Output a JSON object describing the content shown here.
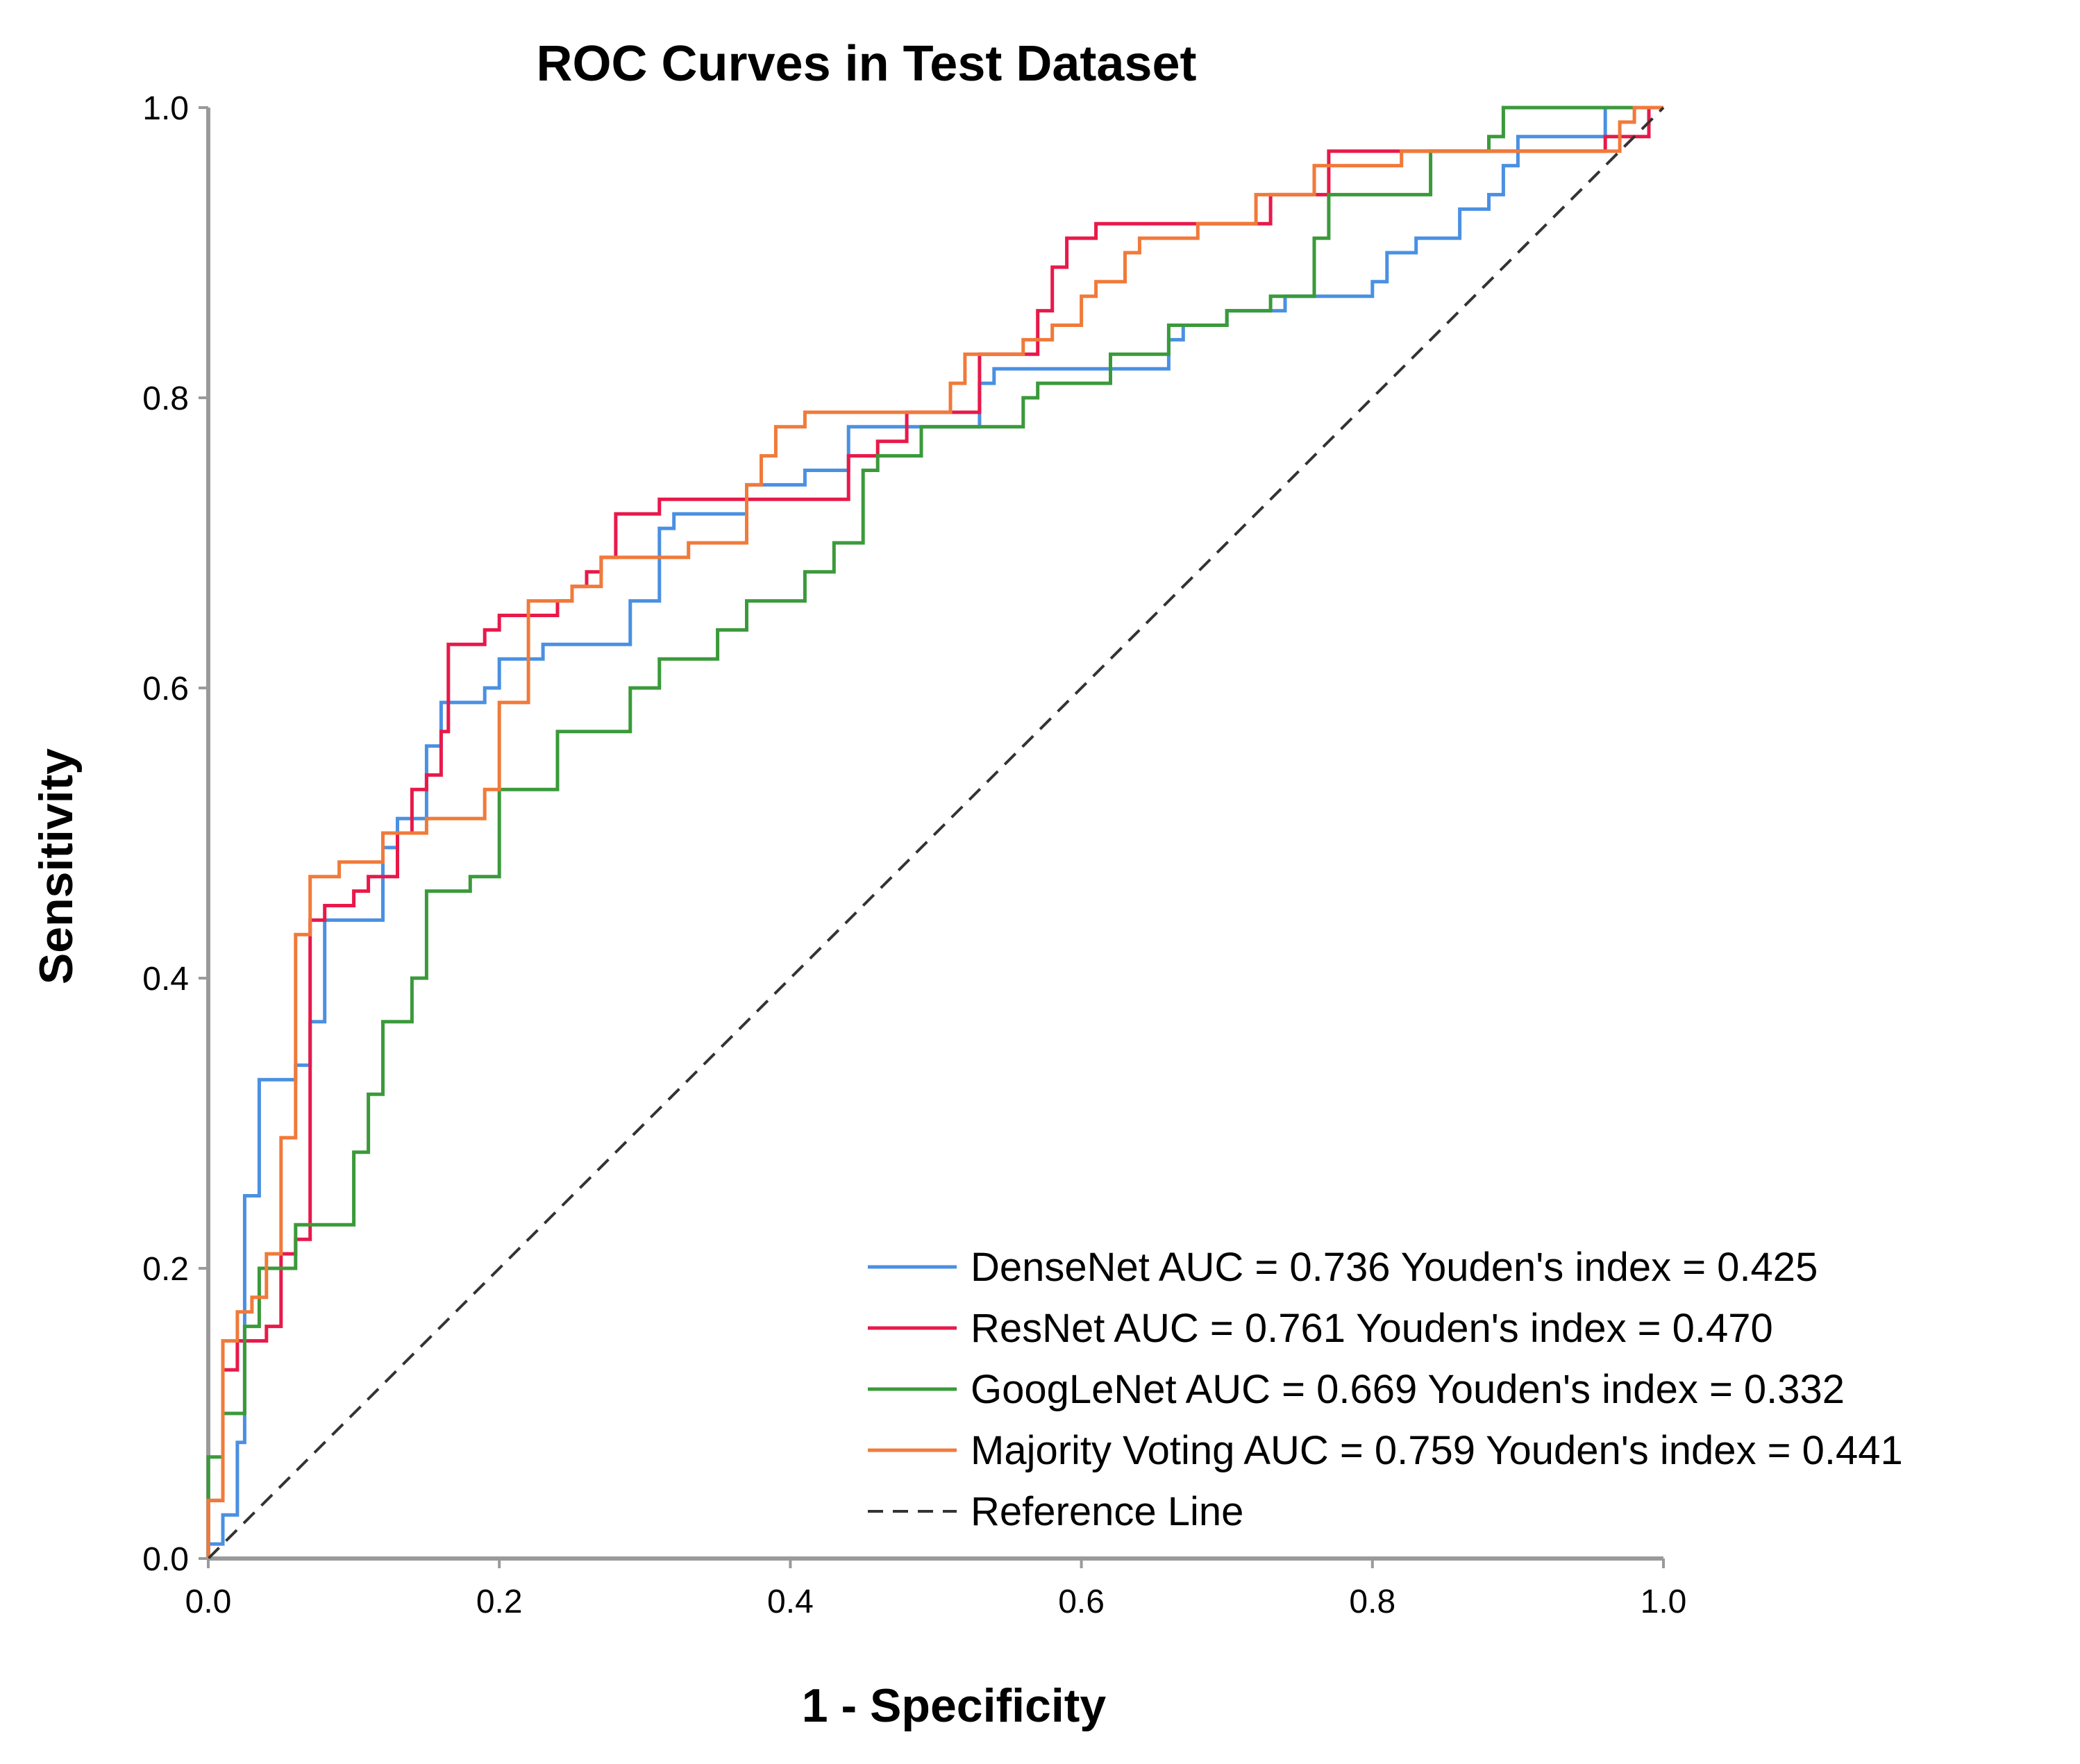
{
  "chart_data": {
    "type": "line",
    "title": "ROC Curves in Test Dataset",
    "xlabel": "1 - Specificity",
    "ylabel": "Sensitivity",
    "xlim": [
      0,
      1
    ],
    "ylim": [
      0,
      1
    ],
    "x_ticks": [
      "0.0",
      "0.2",
      "0.4",
      "0.6",
      "0.8",
      "1.0"
    ],
    "y_ticks": [
      "0.0",
      "0.2",
      "0.4",
      "0.6",
      "0.8",
      "1.0"
    ],
    "legend_position": "bottom-right",
    "series": [
      {
        "name": "DenseNet",
        "label": "DenseNet AUC = 0.736 Youden's index = 0.425",
        "auc": 0.736,
        "youden_index": 0.425,
        "color": "#4a90e2",
        "points": [
          [
            0,
            0
          ],
          [
            0,
            0.01
          ],
          [
            0.01,
            0.01
          ],
          [
            0.01,
            0.03
          ],
          [
            0.02,
            0.03
          ],
          [
            0.02,
            0.08
          ],
          [
            0.025,
            0.08
          ],
          [
            0.025,
            0.25
          ],
          [
            0.035,
            0.25
          ],
          [
            0.035,
            0.33
          ],
          [
            0.06,
            0.33
          ],
          [
            0.06,
            0.34
          ],
          [
            0.07,
            0.34
          ],
          [
            0.07,
            0.37
          ],
          [
            0.08,
            0.37
          ],
          [
            0.08,
            0.44
          ],
          [
            0.12,
            0.44
          ],
          [
            0.12,
            0.49
          ],
          [
            0.13,
            0.49
          ],
          [
            0.13,
            0.51
          ],
          [
            0.15,
            0.51
          ],
          [
            0.15,
            0.56
          ],
          [
            0.16,
            0.56
          ],
          [
            0.16,
            0.59
          ],
          [
            0.19,
            0.59
          ],
          [
            0.19,
            0.6
          ],
          [
            0.2,
            0.6
          ],
          [
            0.2,
            0.62
          ],
          [
            0.23,
            0.62
          ],
          [
            0.23,
            0.63
          ],
          [
            0.29,
            0.63
          ],
          [
            0.29,
            0.66
          ],
          [
            0.31,
            0.66
          ],
          [
            0.31,
            0.71
          ],
          [
            0.32,
            0.71
          ],
          [
            0.32,
            0.72
          ],
          [
            0.37,
            0.72
          ],
          [
            0.37,
            0.74
          ],
          [
            0.41,
            0.74
          ],
          [
            0.41,
            0.75
          ],
          [
            0.44,
            0.75
          ],
          [
            0.44,
            0.78
          ],
          [
            0.53,
            0.78
          ],
          [
            0.53,
            0.81
          ],
          [
            0.54,
            0.81
          ],
          [
            0.54,
            0.82
          ],
          [
            0.66,
            0.82
          ],
          [
            0.66,
            0.84
          ],
          [
            0.67,
            0.84
          ],
          [
            0.67,
            0.85
          ],
          [
            0.7,
            0.85
          ],
          [
            0.7,
            0.86
          ],
          [
            0.74,
            0.86
          ],
          [
            0.74,
            0.87
          ],
          [
            0.8,
            0.87
          ],
          [
            0.8,
            0.88
          ],
          [
            0.81,
            0.88
          ],
          [
            0.81,
            0.9
          ],
          [
            0.83,
            0.9
          ],
          [
            0.83,
            0.91
          ],
          [
            0.86,
            0.91
          ],
          [
            0.86,
            0.93
          ],
          [
            0.88,
            0.93
          ],
          [
            0.88,
            0.94
          ],
          [
            0.89,
            0.94
          ],
          [
            0.89,
            0.96
          ],
          [
            0.9,
            0.96
          ],
          [
            0.9,
            0.98
          ],
          [
            0.96,
            0.98
          ],
          [
            0.96,
            1.0
          ],
          [
            1.0,
            1.0
          ]
        ]
      },
      {
        "name": "ResNet",
        "label": "ResNet AUC = 0.761 Youden's index = 0.470",
        "auc": 0.761,
        "youden_index": 0.47,
        "color": "#e8194a",
        "points": [
          [
            0,
            0
          ],
          [
            0,
            0.04
          ],
          [
            0.01,
            0.04
          ],
          [
            0.01,
            0.13
          ],
          [
            0.02,
            0.13
          ],
          [
            0.02,
            0.15
          ],
          [
            0.04,
            0.15
          ],
          [
            0.04,
            0.16
          ],
          [
            0.05,
            0.16
          ],
          [
            0.05,
            0.21
          ],
          [
            0.06,
            0.21
          ],
          [
            0.06,
            0.22
          ],
          [
            0.07,
            0.22
          ],
          [
            0.07,
            0.44
          ],
          [
            0.08,
            0.44
          ],
          [
            0.08,
            0.45
          ],
          [
            0.1,
            0.45
          ],
          [
            0.1,
            0.46
          ],
          [
            0.11,
            0.46
          ],
          [
            0.11,
            0.47
          ],
          [
            0.13,
            0.47
          ],
          [
            0.13,
            0.5
          ],
          [
            0.14,
            0.5
          ],
          [
            0.14,
            0.53
          ],
          [
            0.15,
            0.53
          ],
          [
            0.15,
            0.54
          ],
          [
            0.16,
            0.54
          ],
          [
            0.16,
            0.57
          ],
          [
            0.165,
            0.57
          ],
          [
            0.165,
            0.63
          ],
          [
            0.19,
            0.63
          ],
          [
            0.19,
            0.64
          ],
          [
            0.2,
            0.64
          ],
          [
            0.2,
            0.65
          ],
          [
            0.24,
            0.65
          ],
          [
            0.24,
            0.66
          ],
          [
            0.25,
            0.66
          ],
          [
            0.25,
            0.67
          ],
          [
            0.26,
            0.67
          ],
          [
            0.26,
            0.68
          ],
          [
            0.27,
            0.68
          ],
          [
            0.27,
            0.69
          ],
          [
            0.28,
            0.69
          ],
          [
            0.28,
            0.72
          ],
          [
            0.31,
            0.72
          ],
          [
            0.31,
            0.73
          ],
          [
            0.44,
            0.73
          ],
          [
            0.44,
            0.76
          ],
          [
            0.46,
            0.76
          ],
          [
            0.46,
            0.77
          ],
          [
            0.48,
            0.77
          ],
          [
            0.48,
            0.79
          ],
          [
            0.53,
            0.79
          ],
          [
            0.53,
            0.83
          ],
          [
            0.57,
            0.83
          ],
          [
            0.57,
            0.86
          ],
          [
            0.58,
            0.86
          ],
          [
            0.58,
            0.89
          ],
          [
            0.59,
            0.89
          ],
          [
            0.59,
            0.91
          ],
          [
            0.61,
            0.91
          ],
          [
            0.61,
            0.92
          ],
          [
            0.73,
            0.92
          ],
          [
            0.73,
            0.94
          ],
          [
            0.77,
            0.94
          ],
          [
            0.77,
            0.97
          ],
          [
            0.96,
            0.97
          ],
          [
            0.96,
            0.98
          ],
          [
            0.99,
            0.98
          ],
          [
            0.99,
            1.0
          ],
          [
            1.0,
            1.0
          ]
        ]
      },
      {
        "name": "GoogLeNet",
        "label": "GoogLeNet AUC = 0.669 Youden's index = 0.332",
        "auc": 0.669,
        "youden_index": 0.332,
        "color": "#3a9a3a",
        "points": [
          [
            0,
            0
          ],
          [
            0,
            0.07
          ],
          [
            0.01,
            0.07
          ],
          [
            0.01,
            0.1
          ],
          [
            0.025,
            0.1
          ],
          [
            0.025,
            0.16
          ],
          [
            0.035,
            0.16
          ],
          [
            0.035,
            0.2
          ],
          [
            0.06,
            0.2
          ],
          [
            0.06,
            0.23
          ],
          [
            0.1,
            0.23
          ],
          [
            0.1,
            0.28
          ],
          [
            0.11,
            0.28
          ],
          [
            0.11,
            0.32
          ],
          [
            0.12,
            0.32
          ],
          [
            0.12,
            0.37
          ],
          [
            0.14,
            0.37
          ],
          [
            0.14,
            0.4
          ],
          [
            0.15,
            0.4
          ],
          [
            0.15,
            0.46
          ],
          [
            0.18,
            0.46
          ],
          [
            0.18,
            0.47
          ],
          [
            0.2,
            0.47
          ],
          [
            0.2,
            0.53
          ],
          [
            0.24,
            0.53
          ],
          [
            0.24,
            0.57
          ],
          [
            0.29,
            0.57
          ],
          [
            0.29,
            0.6
          ],
          [
            0.31,
            0.6
          ],
          [
            0.31,
            0.62
          ],
          [
            0.35,
            0.62
          ],
          [
            0.35,
            0.64
          ],
          [
            0.37,
            0.64
          ],
          [
            0.37,
            0.66
          ],
          [
            0.41,
            0.66
          ],
          [
            0.41,
            0.68
          ],
          [
            0.43,
            0.68
          ],
          [
            0.43,
            0.7
          ],
          [
            0.45,
            0.7
          ],
          [
            0.45,
            0.75
          ],
          [
            0.46,
            0.75
          ],
          [
            0.46,
            0.76
          ],
          [
            0.49,
            0.76
          ],
          [
            0.49,
            0.78
          ],
          [
            0.56,
            0.78
          ],
          [
            0.56,
            0.8
          ],
          [
            0.57,
            0.8
          ],
          [
            0.57,
            0.81
          ],
          [
            0.62,
            0.81
          ],
          [
            0.62,
            0.83
          ],
          [
            0.66,
            0.83
          ],
          [
            0.66,
            0.85
          ],
          [
            0.7,
            0.85
          ],
          [
            0.7,
            0.86
          ],
          [
            0.73,
            0.86
          ],
          [
            0.73,
            0.87
          ],
          [
            0.76,
            0.87
          ],
          [
            0.76,
            0.91
          ],
          [
            0.77,
            0.91
          ],
          [
            0.77,
            0.94
          ],
          [
            0.84,
            0.94
          ],
          [
            0.84,
            0.97
          ],
          [
            0.88,
            0.97
          ],
          [
            0.88,
            0.98
          ],
          [
            0.89,
            0.98
          ],
          [
            0.89,
            1.0
          ],
          [
            1.0,
            1.0
          ]
        ]
      },
      {
        "name": "Majority Voting",
        "label": "Majority Voting AUC = 0.759 Youden's index = 0.441",
        "auc": 0.759,
        "youden_index": 0.441,
        "color": "#f07a3a",
        "points": [
          [
            0,
            0
          ],
          [
            0,
            0.04
          ],
          [
            0.01,
            0.04
          ],
          [
            0.01,
            0.15
          ],
          [
            0.02,
            0.15
          ],
          [
            0.02,
            0.17
          ],
          [
            0.03,
            0.17
          ],
          [
            0.03,
            0.18
          ],
          [
            0.04,
            0.18
          ],
          [
            0.04,
            0.21
          ],
          [
            0.05,
            0.21
          ],
          [
            0.05,
            0.29
          ],
          [
            0.06,
            0.29
          ],
          [
            0.06,
            0.43
          ],
          [
            0.07,
            0.43
          ],
          [
            0.07,
            0.47
          ],
          [
            0.09,
            0.47
          ],
          [
            0.09,
            0.48
          ],
          [
            0.12,
            0.48
          ],
          [
            0.12,
            0.5
          ],
          [
            0.15,
            0.5
          ],
          [
            0.15,
            0.51
          ],
          [
            0.19,
            0.51
          ],
          [
            0.19,
            0.53
          ],
          [
            0.2,
            0.53
          ],
          [
            0.2,
            0.59
          ],
          [
            0.22,
            0.59
          ],
          [
            0.22,
            0.66
          ],
          [
            0.25,
            0.66
          ],
          [
            0.25,
            0.67
          ],
          [
            0.27,
            0.67
          ],
          [
            0.27,
            0.69
          ],
          [
            0.33,
            0.69
          ],
          [
            0.33,
            0.7
          ],
          [
            0.37,
            0.7
          ],
          [
            0.37,
            0.74
          ],
          [
            0.38,
            0.74
          ],
          [
            0.38,
            0.76
          ],
          [
            0.39,
            0.76
          ],
          [
            0.39,
            0.78
          ],
          [
            0.41,
            0.78
          ],
          [
            0.41,
            0.79
          ],
          [
            0.51,
            0.79
          ],
          [
            0.51,
            0.81
          ],
          [
            0.52,
            0.81
          ],
          [
            0.52,
            0.83
          ],
          [
            0.56,
            0.83
          ],
          [
            0.56,
            0.84
          ],
          [
            0.58,
            0.84
          ],
          [
            0.58,
            0.85
          ],
          [
            0.6,
            0.85
          ],
          [
            0.6,
            0.87
          ],
          [
            0.61,
            0.87
          ],
          [
            0.61,
            0.88
          ],
          [
            0.63,
            0.88
          ],
          [
            0.63,
            0.9
          ],
          [
            0.64,
            0.9
          ],
          [
            0.64,
            0.91
          ],
          [
            0.68,
            0.91
          ],
          [
            0.68,
            0.92
          ],
          [
            0.72,
            0.92
          ],
          [
            0.72,
            0.94
          ],
          [
            0.76,
            0.94
          ],
          [
            0.76,
            0.96
          ],
          [
            0.82,
            0.96
          ],
          [
            0.82,
            0.97
          ],
          [
            0.97,
            0.97
          ],
          [
            0.97,
            0.99
          ],
          [
            0.98,
            0.99
          ],
          [
            0.98,
            1.0
          ],
          [
            1.0,
            1.0
          ]
        ]
      },
      {
        "name": "Reference Line",
        "label": "Reference Line",
        "color": "#333333",
        "dashed": true,
        "points": [
          [
            0,
            0
          ],
          [
            1,
            1
          ]
        ]
      }
    ]
  }
}
